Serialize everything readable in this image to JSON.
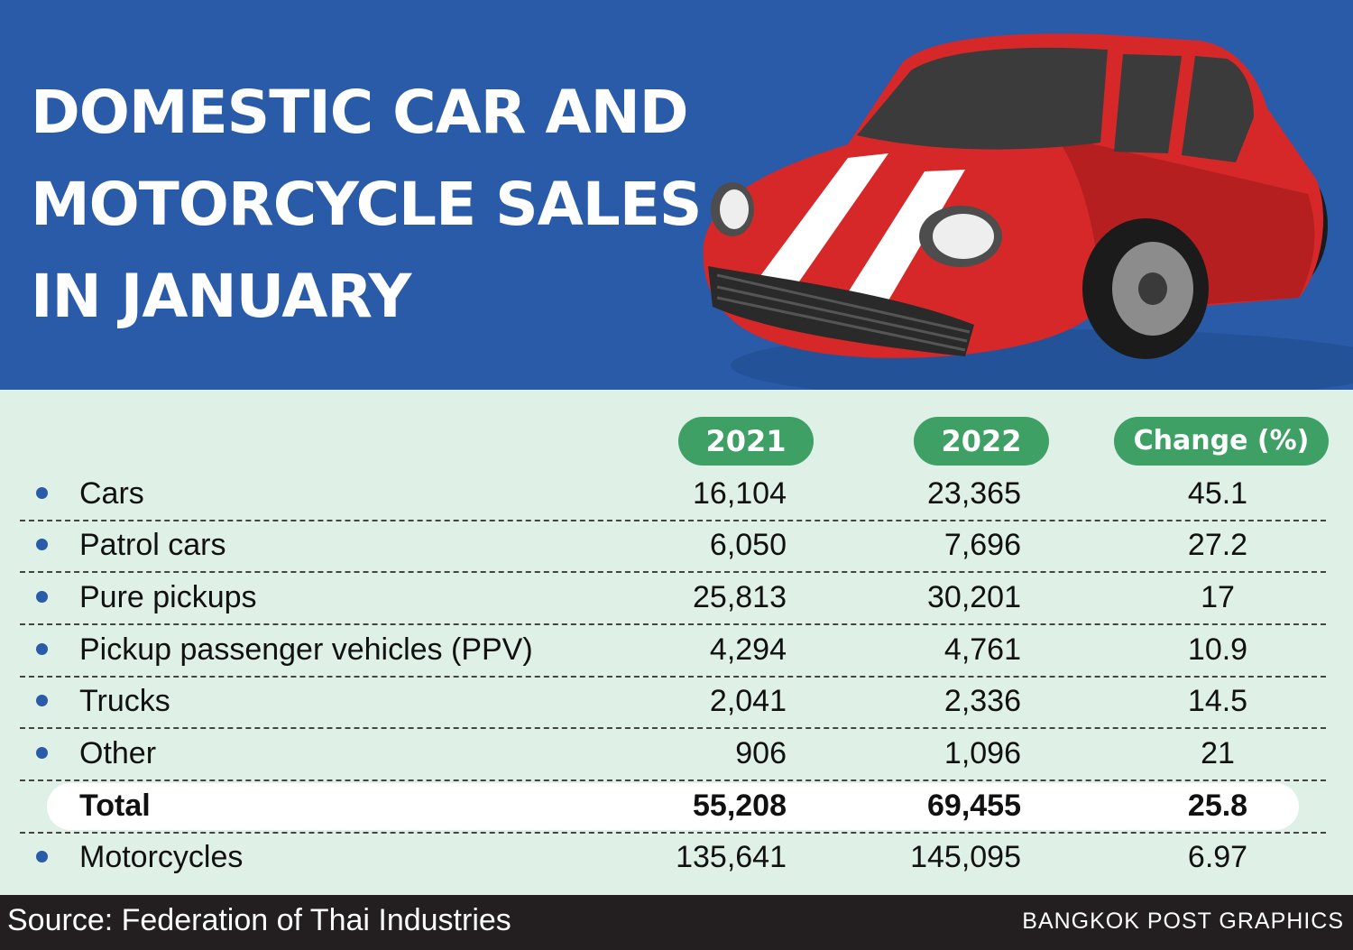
{
  "header": {
    "title_lines": [
      "DOMESTIC CAR AND",
      "MOTORCYCLE SALES",
      "IN JANUARY"
    ]
  },
  "columns": [
    "2021",
    "2022",
    "Change (%)"
  ],
  "rows": [
    {
      "label": "Cars",
      "v2021": "16,104",
      "v2022": "23,365",
      "change": "45.1",
      "bullet": true
    },
    {
      "label": "Patrol cars",
      "v2021": "6,050",
      "v2022": "7,696",
      "change": "27.2",
      "bullet": true
    },
    {
      "label": "Pure pickups",
      "v2021": "25,813",
      "v2022": "30,201",
      "change": "17",
      "bullet": true
    },
    {
      "label": "Pickup passenger vehicles (PPV)",
      "v2021": "4,294",
      "v2022": "4,761",
      "change": "10.9",
      "bullet": true
    },
    {
      "label": "Trucks",
      "v2021": "2,041",
      "v2022": "2,336",
      "change": "14.5",
      "bullet": true
    },
    {
      "label": "Other",
      "v2021": "906",
      "v2022": "1,096",
      "change": "21",
      "bullet": true
    },
    {
      "label": "Total",
      "v2021": "55,208",
      "v2022": "69,455",
      "change": "25.8",
      "bullet": false
    },
    {
      "label": "Motorcycles",
      "v2021": "135,641",
      "v2022": "145,095",
      "change": "6.97",
      "bullet": true
    }
  ],
  "chart_data": {
    "type": "table",
    "columns": [
      "2021",
      "2022",
      "Change (%)"
    ],
    "categories": [
      "Cars",
      "Patrol cars",
      "Pure pickups",
      "Pickup passenger vehicles (PPV)",
      "Trucks",
      "Other",
      "Total",
      "Motorcycles"
    ],
    "series": [
      {
        "name": "2021",
        "values": [
          16104,
          6050,
          25813,
          4294,
          2041,
          906,
          55208,
          135641
        ]
      },
      {
        "name": "2022",
        "values": [
          23365,
          7696,
          30201,
          4761,
          2336,
          1096,
          69455,
          145095
        ]
      },
      {
        "name": "Change (%)",
        "values": [
          45.1,
          27.2,
          17,
          10.9,
          14.5,
          21,
          25.8,
          6.97
        ]
      }
    ]
  },
  "footer": {
    "source": "Source: Federation of Thai Industries",
    "credit": "BANGKOK POST GRAPHICS"
  },
  "colors": {
    "header_bg": "#2a5ba9",
    "table_bg": "#dff0e6",
    "pill_green": "#3fa066",
    "bullet_blue": "#2a5ba9",
    "car_red": "#d62828",
    "footer_bg": "#231f20"
  }
}
